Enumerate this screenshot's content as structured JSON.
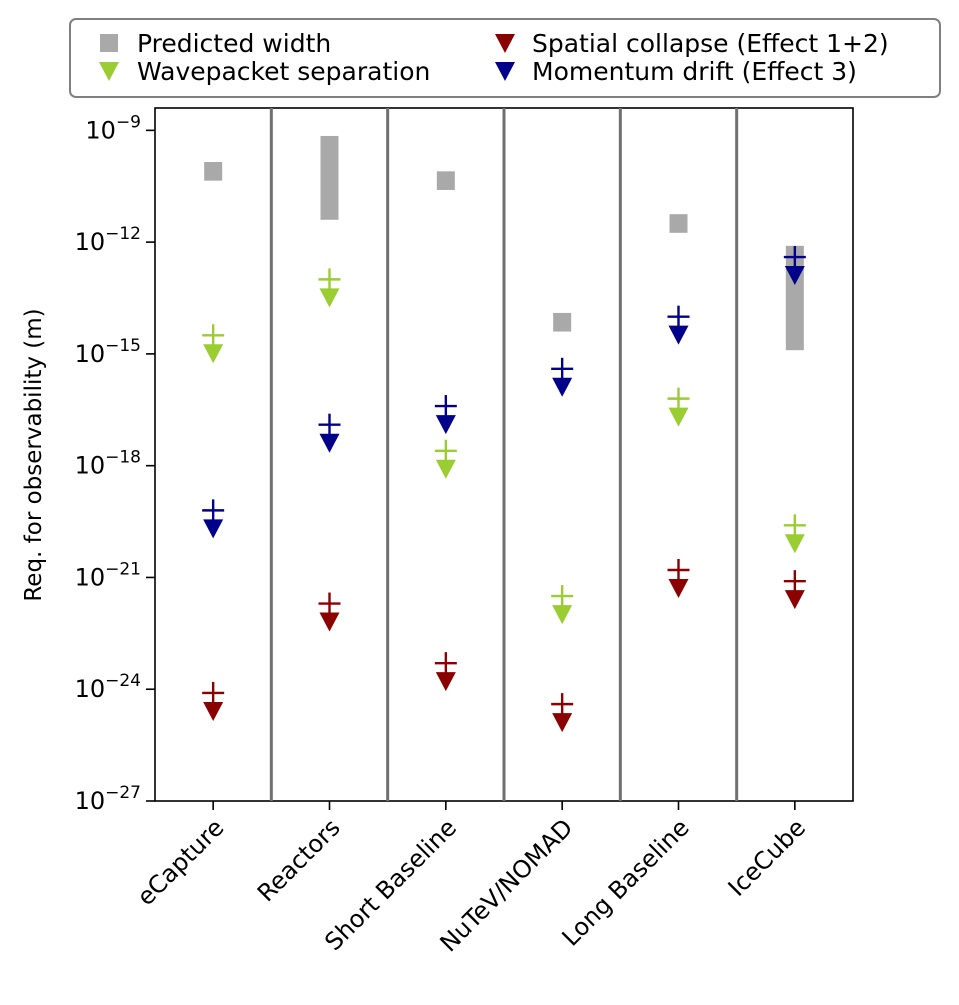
{
  "chart_data": {
    "type": "scatter",
    "title": "",
    "xlabel": "",
    "ylabel": "Req. for observability (m)",
    "yscale": "log",
    "ylim_exp": [
      -27,
      -8.4
    ],
    "yticks": [
      {
        "exp": -9,
        "base": "10",
        "sup": "−9"
      },
      {
        "exp": -12,
        "base": "10",
        "sup": "−12"
      },
      {
        "exp": -15,
        "base": "10",
        "sup": "−15"
      },
      {
        "exp": -18,
        "base": "10",
        "sup": "−18"
      },
      {
        "exp": -21,
        "base": "10",
        "sup": "−21"
      },
      {
        "exp": -24,
        "base": "10",
        "sup": "−24"
      },
      {
        "exp": -27,
        "base": "10",
        "sup": "−27"
      }
    ],
    "categories": [
      "eCapture",
      "Reactors",
      "Short Baseline",
      "NuTeV/NOMAD",
      "Long Baseline",
      "IceCube"
    ],
    "legend_position": "top (above plot)",
    "colors": {
      "predicted_width": "#a9a9a9",
      "wavepacket_separation": "#9acd32",
      "spatial_collapse": "#8b0000",
      "momentum_drift": "#00008b",
      "separator": "#707070",
      "legend_border": "#808080"
    },
    "predicted_width": {
      "name": "Predicted width",
      "marker": "square",
      "ranges_exp": [
        [
          -10.35,
          -9.85
        ],
        [
          -11.4,
          -9.15
        ],
        [
          -10.6,
          -10.1
        ],
        [
          -13.9,
          -14.4
        ],
        [
          -11.25,
          -11.75
        ],
        [
          -14.9,
          -12.1
        ]
      ]
    },
    "series": [
      {
        "name": "Wavepacket separation",
        "key": "wavepacket_separation",
        "marker": "triangle-down",
        "values_exp": [
          -14.5,
          -13.0,
          -17.6,
          -21.5,
          -16.2,
          -19.6
        ]
      },
      {
        "name": "Spatial collapse (Effect 1+2)",
        "key": "spatial_collapse",
        "marker": "triangle-down",
        "values_exp": [
          -24.1,
          -21.7,
          -23.3,
          -24.4,
          -20.8,
          -21.1
        ]
      },
      {
        "name": "Momentum drift (Effect 3)",
        "key": "momentum_drift",
        "marker": "triangle-down",
        "values_exp": [
          -19.2,
          -16.9,
          -16.4,
          -15.4,
          -14.0,
          -12.4
        ]
      }
    ]
  }
}
